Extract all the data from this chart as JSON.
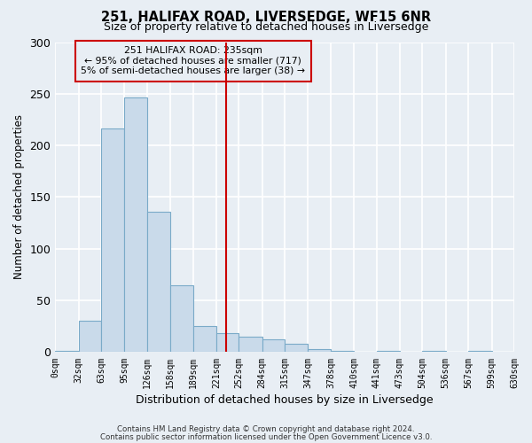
{
  "title": "251, HALIFAX ROAD, LIVERSEDGE, WF15 6NR",
  "subtitle": "Size of property relative to detached houses in Liversedge",
  "xlabel": "Distribution of detached houses by size in Liversedge",
  "ylabel": "Number of detached properties",
  "bin_edges": [
    0,
    32,
    63,
    95,
    126,
    158,
    189,
    221,
    252,
    284,
    315,
    347,
    378,
    410,
    441,
    473,
    504,
    536,
    567,
    599,
    630
  ],
  "bin_labels": [
    "0sqm",
    "32sqm",
    "63sqm",
    "95sqm",
    "126sqm",
    "158sqm",
    "189sqm",
    "221sqm",
    "252sqm",
    "284sqm",
    "315sqm",
    "347sqm",
    "378sqm",
    "410sqm",
    "441sqm",
    "473sqm",
    "504sqm",
    "536sqm",
    "567sqm",
    "599sqm",
    "630sqm"
  ],
  "counts": [
    1,
    30,
    216,
    246,
    136,
    65,
    25,
    18,
    15,
    12,
    8,
    3,
    1,
    0,
    1,
    0,
    1,
    0,
    1,
    0
  ],
  "bar_color": "#c9daea",
  "bar_edge_color": "#7aaac8",
  "vline_x": 235,
  "vline_color": "#cc0000",
  "ylim": [
    0,
    300
  ],
  "yticks": [
    0,
    50,
    100,
    150,
    200,
    250,
    300
  ],
  "annotation_title": "251 HALIFAX ROAD: 235sqm",
  "annotation_line1": "← 95% of detached houses are smaller (717)",
  "annotation_line2": "5% of semi-detached houses are larger (38) →",
  "annotation_box_color": "#cc0000",
  "footer1": "Contains HM Land Registry data © Crown copyright and database right 2024.",
  "footer2": "Contains public sector information licensed under the Open Government Licence v3.0.",
  "background_color": "#e8eef4",
  "plot_bg_color": "#e8eef4",
  "grid_color": "#ffffff"
}
